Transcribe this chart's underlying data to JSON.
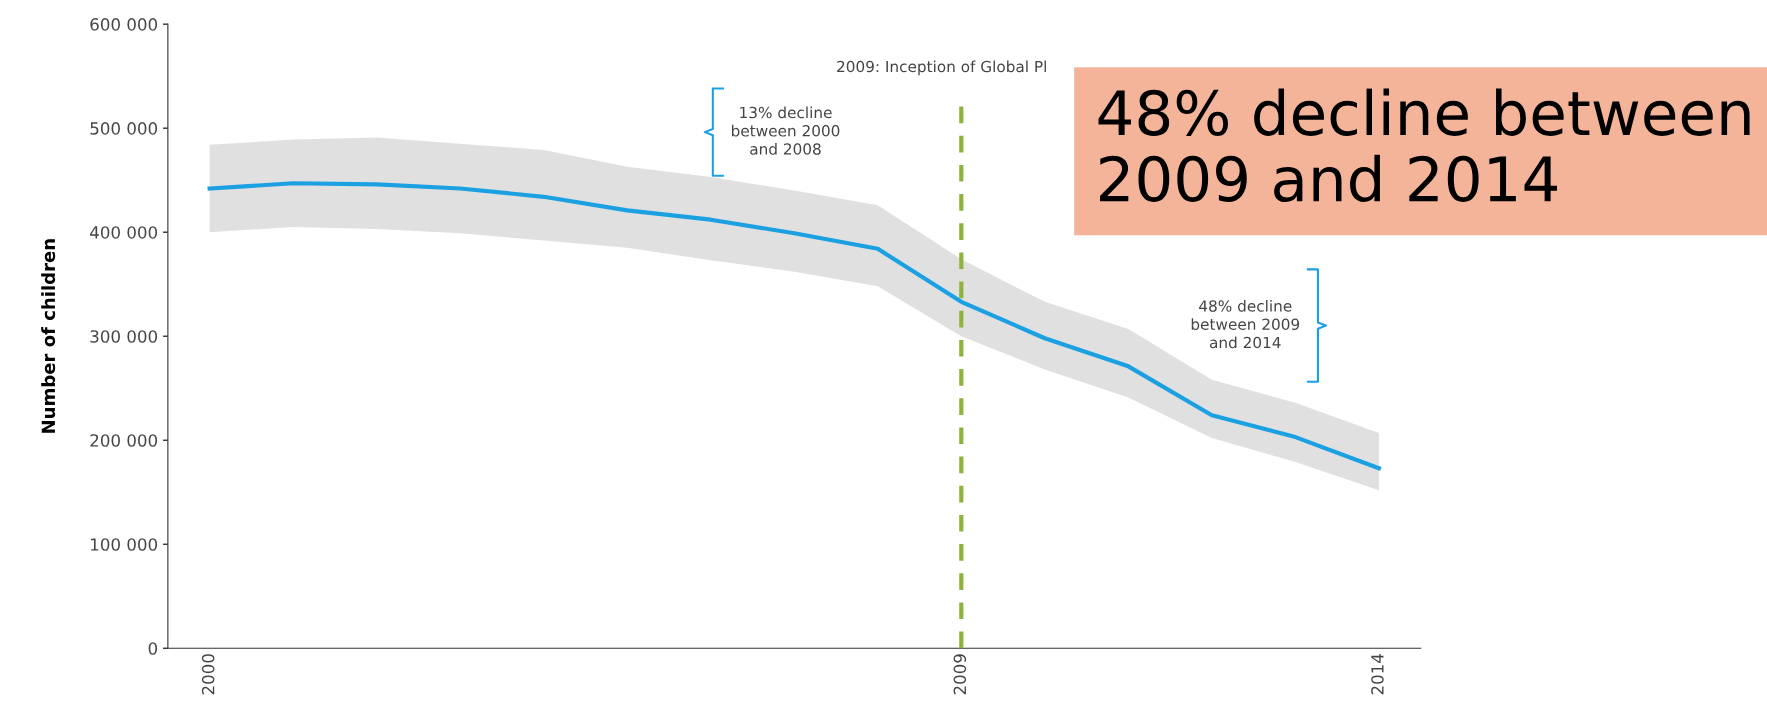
{
  "chart_data": {
    "type": "line",
    "ylabel": "Number of children",
    "x": [
      2000,
      2001,
      2002,
      2003,
      2004,
      2005,
      2006,
      2007,
      2008,
      2009,
      2010,
      2011,
      2012,
      2013,
      2014
    ],
    "series": [
      {
        "color": "#1ba1e2",
        "values": [
          442000,
          447000,
          446000,
          442000,
          434000,
          421000,
          412000,
          399000,
          384000,
          333000,
          298000,
          271000,
          224000,
          203000,
          173000
        ],
        "upper": [
          484000,
          489000,
          491000,
          485000,
          479000,
          463000,
          453000,
          440000,
          426000,
          374000,
          333000,
          307000,
          258000,
          236000,
          207000
        ],
        "lower": [
          400000,
          405000,
          403000,
          399000,
          392000,
          385000,
          373000,
          362000,
          348000,
          300000,
          268000,
          241000,
          202000,
          179000,
          152000
        ]
      }
    ],
    "xlim": [
      1999.5,
      2014.5
    ],
    "xticks": [
      2000,
      2009,
      2014
    ],
    "ylim": [
      0,
      600000
    ],
    "yticks": [
      {
        "value": 0,
        "label": "0"
      },
      {
        "value": 100000,
        "label": "100 000"
      },
      {
        "value": 200000,
        "label": "200 000"
      },
      {
        "value": 300000,
        "label": "300 000"
      },
      {
        "value": 400000,
        "label": "400 000"
      },
      {
        "value": 500000,
        "label": "500 000"
      },
      {
        "value": 600000,
        "label": "600 000"
      }
    ],
    "ref_lines": [
      {
        "axis": "x",
        "value": 2009,
        "label": "2009: Inception of Global Pl",
        "color": "#8db33a",
        "line_style": "dashed"
      }
    ],
    "annotations": [
      "13% decline\nbetween 2000\nand 2008",
      "48% decline\nbetween 2009\nand 2014",
      "48% decline between\n2009 and 2014"
    ],
    "grid": false,
    "marker": "none",
    "line_style": "solid"
  }
}
